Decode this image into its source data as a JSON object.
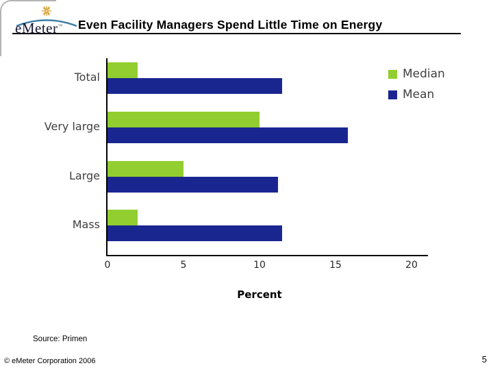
{
  "slide": {
    "logo": {
      "text": "eMeter",
      "tm": "™"
    },
    "title": "Even Facility Managers Spend Little Time on Energy",
    "source_note": "Source: Primen",
    "footer_left": "© eMeter Corporation 2006",
    "page_number": "5"
  },
  "colors": {
    "median_green": "#92CE30",
    "mean_blue": "#1A2690",
    "axis_black": "#000000",
    "label_gray": "#3F3F3F",
    "logo_arc_blue": "#3E7FA6",
    "logo_burst_gold": "#D6A02F"
  },
  "chart_data": {
    "type": "bar",
    "orientation": "horizontal",
    "title": "",
    "categories": [
      "Total",
      "Very large",
      "Large",
      "Mass"
    ],
    "series": [
      {
        "name": "Median",
        "color": "#92CE30",
        "values": [
          2,
          10,
          5,
          2
        ]
      },
      {
        "name": "Mean",
        "color": "#1A2690",
        "values": [
          11.5,
          15.8,
          11.2,
          11.5
        ]
      }
    ],
    "xlabel": "Percent",
    "ylabel": "",
    "xlim": [
      0,
      20
    ],
    "xticks": [
      0,
      5,
      10,
      15,
      20
    ],
    "grid": false,
    "legend_position": "right"
  }
}
